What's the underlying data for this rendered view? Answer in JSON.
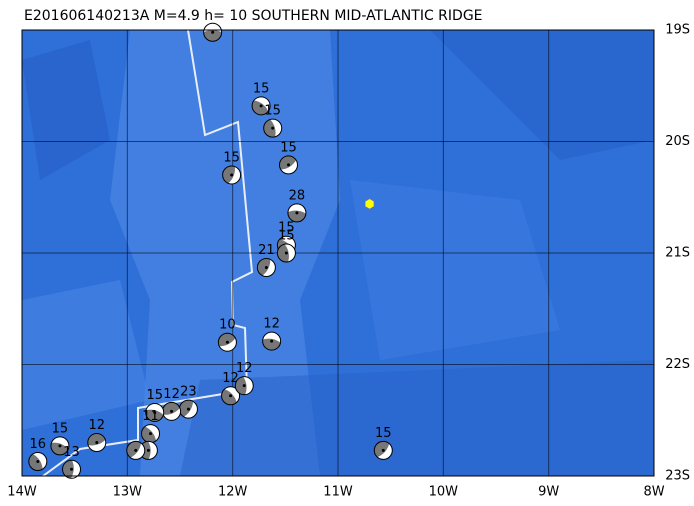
{
  "map": {
    "title": "E201606140213A M=4.9 h= 10 SOUTHERN MID-ATLANTIC RIDGE",
    "lonlim": [
      -14,
      -8
    ],
    "latlim": [
      -23,
      -19
    ],
    "lon_ticks": [
      {
        "value": -14,
        "label": "14W"
      },
      {
        "value": -13,
        "label": "13W"
      },
      {
        "value": -12,
        "label": "12W"
      },
      {
        "value": -11,
        "label": "11W"
      },
      {
        "value": -10,
        "label": "10W"
      },
      {
        "value": -9,
        "label": "9W"
      },
      {
        "value": -8,
        "label": "8W"
      }
    ],
    "lat_ticks": [
      {
        "value": -19,
        "label": "19S"
      },
      {
        "value": -20,
        "label": "20S"
      },
      {
        "value": -21,
        "label": "21S"
      },
      {
        "value": -22,
        "label": "22S"
      },
      {
        "value": -23,
        "label": "23S"
      }
    ],
    "epicenter": {
      "lon": -10.7,
      "lat": -20.56,
      "color": "#ffff00"
    },
    "events": [
      {
        "lon": -12.19,
        "lat": -19.02
      },
      {
        "lon": -11.73,
        "lat": -19.68,
        "label": "15"
      },
      {
        "lon": -11.62,
        "lat": -19.88,
        "label": "15"
      },
      {
        "lon": -12.01,
        "lat": -20.3,
        "label": "15"
      },
      {
        "lon": -11.47,
        "lat": -20.21,
        "label": "15"
      },
      {
        "lon": -11.39,
        "lat": -20.64,
        "label": "28"
      },
      {
        "lon": -11.49,
        "lat": -20.93,
        "label": "15"
      },
      {
        "lon": -11.49,
        "lat": -21.0,
        "label": "15"
      },
      {
        "lon": -11.68,
        "lat": -21.13,
        "label": "21"
      },
      {
        "lon": -12.05,
        "lat": -21.8,
        "label": "10"
      },
      {
        "lon": -11.63,
        "lat": -21.79,
        "label": "12"
      },
      {
        "lon": -12.02,
        "lat": -22.28,
        "label": "12"
      },
      {
        "lon": -11.89,
        "lat": -22.19,
        "label": "12"
      },
      {
        "lon": -12.42,
        "lat": -22.4,
        "label": "23"
      },
      {
        "lon": -12.58,
        "lat": -22.42,
        "label": "12"
      },
      {
        "lon": -12.74,
        "lat": -22.43,
        "label": "15"
      },
      {
        "lon": -12.78,
        "lat": -22.62,
        "label": "11"
      },
      {
        "lon": -12.8,
        "lat": -22.77
      },
      {
        "lon": -12.92,
        "lat": -22.77
      },
      {
        "lon": -13.29,
        "lat": -22.7,
        "label": "12"
      },
      {
        "lon": -13.64,
        "lat": -22.73,
        "label": "15"
      },
      {
        "lon": -13.85,
        "lat": -22.87,
        "label": "16"
      },
      {
        "lon": -13.53,
        "lat": -22.94,
        "label": "13"
      },
      {
        "lon": -10.57,
        "lat": -22.77,
        "label": "15"
      }
    ]
  }
}
